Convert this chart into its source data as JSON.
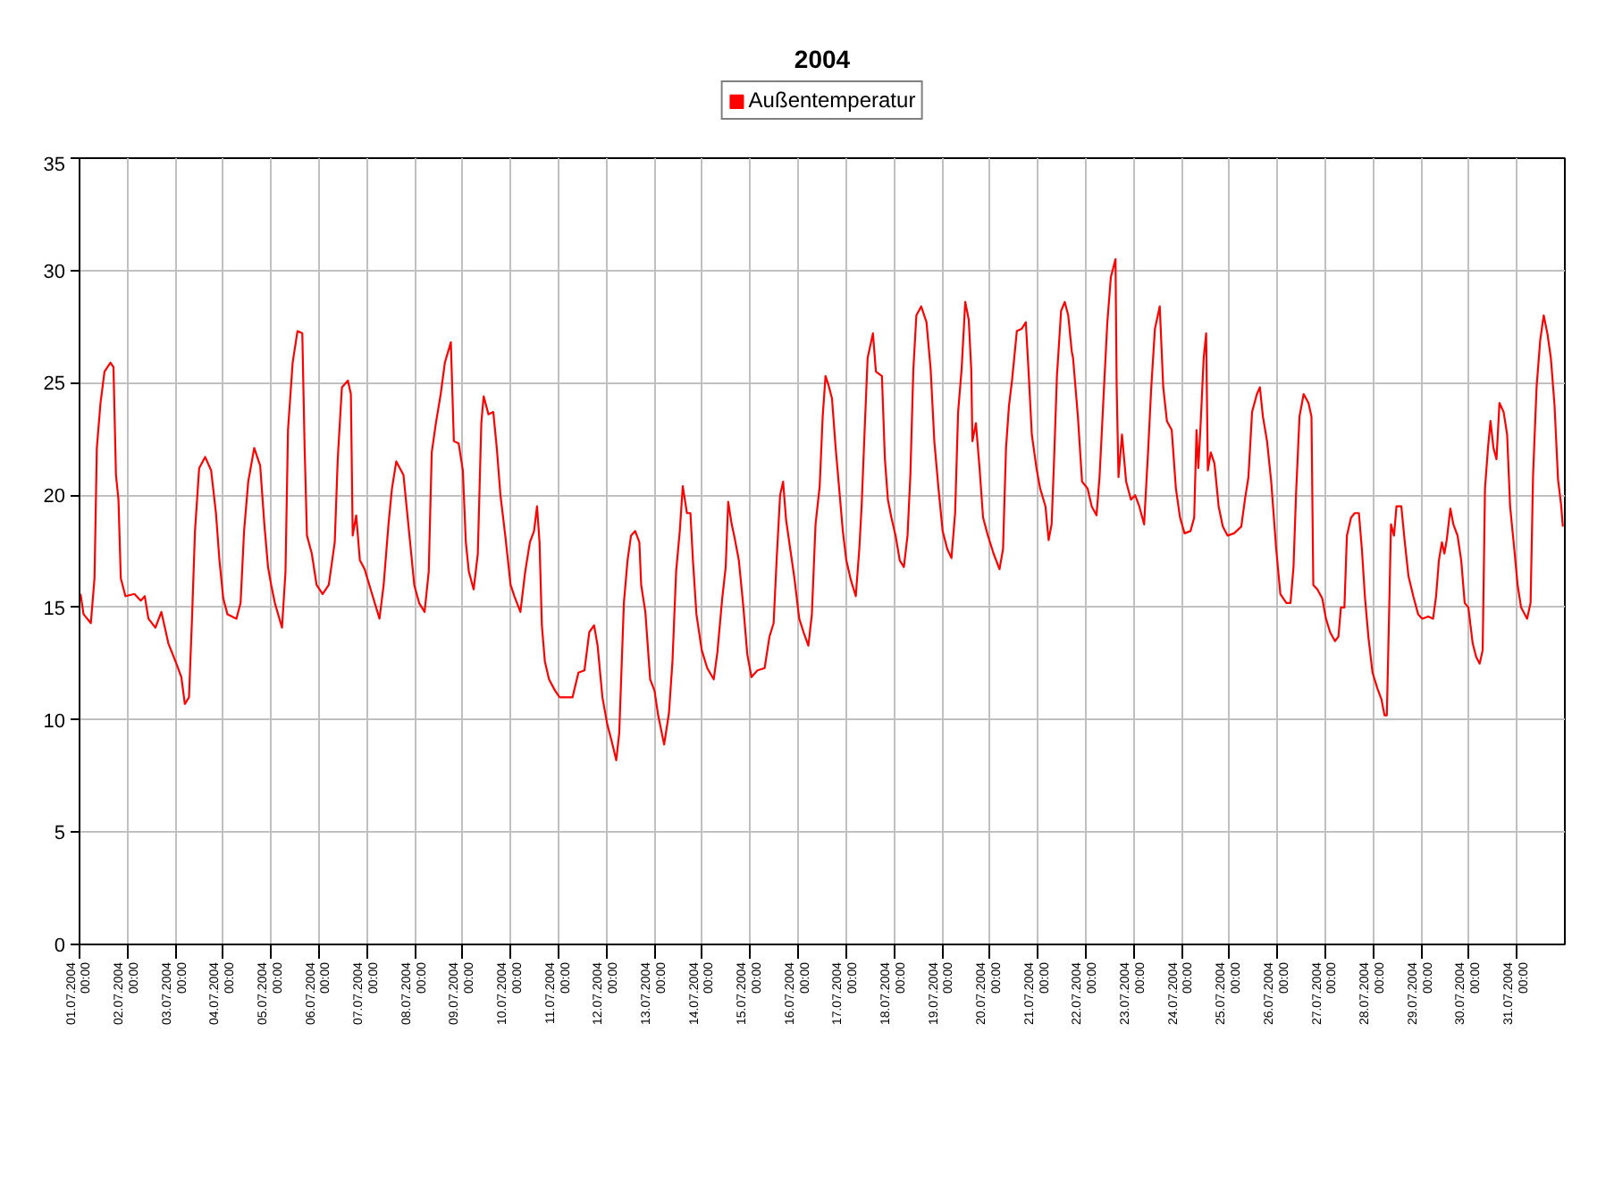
{
  "chart_data": {
    "type": "line",
    "title": "2004",
    "legend": "top",
    "grid": true,
    "xlim": [
      "2004-07-01T00:00",
      "2004-08-01T00:00"
    ],
    "xticks": [
      {
        "value": "2004-07-01T00:00",
        "label": "01.07.2004\n00:00"
      },
      {
        "value": "2004-07-02T00:00",
        "label": "02.07.2004\n00:00"
      },
      {
        "value": "2004-07-03T00:00",
        "label": "03.07.2004\n00:00"
      },
      {
        "value": "2004-07-04T00:00",
        "label": "04.07.2004\n00:00"
      },
      {
        "value": "2004-07-05T00:00",
        "label": "05.07.2004\n00:00"
      },
      {
        "value": "2004-07-06T00:00",
        "label": "06.07.2004\n00:00"
      },
      {
        "value": "2004-07-07T00:00",
        "label": "07.07.2004\n00:00"
      },
      {
        "value": "2004-07-08T00:00",
        "label": "08.07.2004\n00:00"
      },
      {
        "value": "2004-07-09T00:00",
        "label": "09.07.2004\n00:00"
      },
      {
        "value": "2004-07-10T00:00",
        "label": "10.07.2004\n00:00"
      },
      {
        "value": "2004-07-11T00:00",
        "label": "11.07.2004\n00:00"
      },
      {
        "value": "2004-07-12T00:00",
        "label": "12.07.2004\n00:00"
      },
      {
        "value": "2004-07-13T00:00",
        "label": "13.07.2004\n00:00"
      },
      {
        "value": "2004-07-14T00:00",
        "label": "14.07.2004\n00:00"
      },
      {
        "value": "2004-07-15T00:00",
        "label": "15.07.2004\n00:00"
      },
      {
        "value": "2004-07-16T00:00",
        "label": "16.07.2004\n00:00"
      },
      {
        "value": "2004-07-17T00:00",
        "label": "17.07.2004\n00:00"
      },
      {
        "value": "2004-07-18T00:00",
        "label": "18.07.2004\n00:00"
      },
      {
        "value": "2004-07-19T00:00",
        "label": "19.07.2004\n00:00"
      },
      {
        "value": "2004-07-20T00:00",
        "label": "20.07.2004\n00:00"
      },
      {
        "value": "2004-07-21T00:00",
        "label": "21.07.2004\n00:00"
      },
      {
        "value": "2004-07-22T00:00",
        "label": "22.07.2004\n00:00"
      },
      {
        "value": "2004-07-23T00:00",
        "label": "23.07.2004\n00:00"
      },
      {
        "value": "2004-07-24T00:00",
        "label": "24.07.2004\n00:00"
      },
      {
        "value": "2004-07-25T00:00",
        "label": "25.07.2004\n00:00"
      },
      {
        "value": "2004-07-26T00:00",
        "label": "26.07.2004\n00:00"
      },
      {
        "value": "2004-07-27T00:00",
        "label": "27.07.2004\n00:00"
      },
      {
        "value": "2004-07-28T00:00",
        "label": "28.07.2004\n00:00"
      },
      {
        "value": "2004-07-29T00:00",
        "label": "29.07.2004\n00:00"
      },
      {
        "value": "2004-07-30T00:00",
        "label": "30.07.2004\n00:00"
      },
      {
        "value": "2004-07-31T00:00",
        "label": "31.07.2004\n00:00"
      }
    ],
    "ylim": [
      0,
      35
    ],
    "yticks": [
      0,
      5,
      10,
      15,
      20,
      25,
      30,
      35
    ],
    "x": [
      "2004-07-01T00:30",
      "2004-07-01T02:00",
      "2004-07-01T05:40",
      "2004-07-01T07:30",
      "2004-07-01T08:40",
      "2004-07-01T10:30",
      "2004-07-01T12:30",
      "2004-07-01T15:30",
      "2004-07-01T17:00",
      "2004-07-01T18:15",
      "2004-07-01T19:30",
      "2004-07-01T20:40",
      "2004-07-01T23:00",
      "2004-07-02T03:30",
      "2004-07-02T06:40",
      "2004-07-02T08:40",
      "2004-07-02T10:30",
      "2004-07-02T14:00",
      "2004-07-02T17:00",
      "2004-07-02T20:30",
      "2004-07-03T00:30",
      "2004-07-03T03:00",
      "2004-07-03T04:45",
      "2004-07-03T06:50",
      "2004-07-03T08:20",
      "2004-07-03T09:50",
      "2004-07-03T11:55",
      "2004-07-03T14:55",
      "2004-07-03T17:55",
      "2004-07-03T20:20",
      "2004-07-03T22:05",
      "2004-07-04T00:00",
      "2004-07-04T02:05",
      "2004-07-04T06:35",
      "2004-07-04T08:40",
      "2004-07-04T10:25",
      "2004-07-04T12:30",
      "2004-07-04T15:30",
      "2004-07-04T18:30",
      "2004-07-04T20:35",
      "2004-07-04T22:25",
      "2004-07-05T00:00",
      "2004-07-05T01:50",
      "2004-07-05T05:25",
      "2004-07-05T07:10",
      "2004-07-05T08:25",
      "2004-07-05T10:45",
      "2004-07-05T13:10",
      "2004-07-05T15:35",
      "2004-07-05T16:45",
      "2004-07-05T17:55",
      "2004-07-05T20:20",
      "2004-07-05T22:45",
      "2004-07-06T01:45",
      "2004-07-06T04:50",
      "2004-07-06T07:50",
      "2004-07-06T09:20",
      "2004-07-06T11:25",
      "2004-07-06T14:25",
      "2004-07-06T15:55",
      "2004-07-06T16:50",
      "2004-07-06T18:35",
      "2004-07-06T20:25",
      "2004-07-06T22:50",
      "2004-07-07T01:50",
      "2004-07-07T06:15",
      "2004-07-07T08:20",
      "2004-07-07T10:45",
      "2004-07-07T12:30",
      "2004-07-07T14:40",
      "2004-07-07T18:15",
      "2004-07-07T21:15",
      "2004-07-07T23:40",
      "2004-07-08T02:05",
      "2004-07-08T04:50",
      "2004-07-08T06:55",
      "2004-07-08T08:25",
      "2004-07-08T10:30",
      "2004-07-08T12:55",
      "2004-07-08T15:00",
      "2004-07-08T18:00",
      "2004-07-08T19:30",
      "2004-07-08T21:55",
      "2004-07-09T00:00",
      "2004-07-09T01:30",
      "2004-07-09T03:00",
      "2004-07-09T05:25",
      "2004-07-09T07:30",
      "2004-07-09T09:15",
      "2004-07-09T10:25",
      "2004-07-09T12:50",
      "2004-07-09T15:15",
      "2004-07-09T17:00",
      "2004-07-09T18:50",
      "2004-07-09T21:15",
      "2004-07-09T23:55",
      "2004-07-10T01:50",
      "2004-07-10T04:50",
      "2004-07-10T07:15",
      "2004-07-10T09:35",
      "2004-07-10T11:40",
      "2004-07-10T13:10",
      "2004-07-10T14:25",
      "2004-07-10T15:35",
      "2004-07-10T17:05",
      "2004-07-10T19:10",
      "2004-07-10T22:10",
      "2004-07-11T00:30",
      "2004-07-11T02:25",
      "2004-07-11T06:55",
      "2004-07-11T09:55",
      "2004-07-11T12:55",
      "2004-07-11T15:20",
      "2004-07-11T17:45",
      "2004-07-11T19:30",
      "2004-07-11T21:55",
      "2004-07-12T00:20",
      "2004-07-12T02:25",
      "2004-07-12T04:50",
      "2004-07-12T06:20",
      "2004-07-12T07:30",
      "2004-07-12T08:40",
      "2004-07-12T10:30",
      "2004-07-12T12:15",
      "2004-07-12T14:20",
      "2004-07-12T16:25",
      "2004-07-12T17:20",
      "2004-07-12T19:25",
      "2004-07-12T21:50",
      "2004-07-13T00:00",
      "2004-07-13T01:50",
      "2004-07-13T04:50",
      "2004-07-13T07:15",
      "2004-07-13T09:00",
      "2004-07-13T10:50",
      "2004-07-13T12:40",
      "2004-07-13T14:10",
      "2004-07-13T16:15",
      "2004-07-13T18:00",
      "2004-07-13T19:15",
      "2004-07-13T21:00",
      "2004-07-13T23:40",
      "2004-07-14T02:25",
      "2004-07-14T05:40",
      "2004-07-14T07:30",
      "2004-07-14T09:55",
      "2004-07-14T11:40",
      "2004-07-14T12:55",
      "2004-07-14T14:40",
      "2004-07-14T15:55",
      "2004-07-14T18:15",
      "2004-07-14T20:20",
      "2004-07-14T22:30",
      "2004-07-15T00:35",
      "2004-07-15T03:35",
      "2004-07-15T07:10",
      "2004-07-15T09:35",
      "2004-07-15T11:40",
      "2004-07-15T13:10",
      "2004-07-15T14:55",
      "2004-07-15T16:25",
      "2004-07-15T17:55",
      "2004-07-15T20:00",
      "2004-07-15T22:05",
      "2004-07-16T00:30",
      "2004-07-16T02:40",
      "2004-07-16T05:05",
      "2004-07-16T06:50",
      "2004-07-16T08:40",
      "2004-07-16T10:45",
      "2004-07-16T12:15",
      "2004-07-16T13:40",
      "2004-07-16T15:10",
      "2004-07-16T16:55",
      "2004-07-16T18:45",
      "2004-07-16T20:30",
      "2004-07-16T22:20",
      "2004-07-17T00:05",
      "2004-07-17T02:25",
      "2004-07-17T04:50",
      "2004-07-17T06:35",
      "2004-07-17T07:45",
      "2004-07-17T09:00",
      "2004-07-17T10:45",
      "2004-07-17T13:25",
      "2004-07-17T14:55",
      "2004-07-17T17:55",
      "2004-07-17T19:25",
      "2004-07-17T20:55",
      "2004-07-17T22:40",
      "2004-07-18T00:45",
      "2004-07-18T02:50",
      "2004-07-18T04:55",
      "2004-07-18T06:45",
      "2004-07-18T08:10",
      "2004-07-18T09:40",
      "2004-07-18T11:10",
      "2004-07-18T13:35",
      "2004-07-18T16:15",
      "2004-07-18T18:20",
      "2004-07-18T20:10",
      "2004-07-18T22:15",
      "2004-07-19T00:20",
      "2004-07-19T02:40",
      "2004-07-19T04:45",
      "2004-07-19T06:35",
      "2004-07-19T08:05",
      "2004-07-19T09:50",
      "2004-07-19T11:40",
      "2004-07-19T13:25",
      "2004-07-19T14:40",
      "2004-07-19T15:15",
      "2004-07-19T17:00",
      "2004-07-19T18:50",
      "2004-07-19T20:35",
      "2004-07-19T23:00",
      "2004-07-20T01:50",
      "2004-07-20T04:50",
      "2004-07-20T06:35",
      "2004-07-20T08:05",
      "2004-07-20T09:35",
      "2004-07-20T11:05",
      "2004-07-20T13:30",
      "2004-07-20T15:55",
      "2004-07-20T18:00",
      "2004-07-20T19:30",
      "2004-07-20T21:00",
      "2004-07-20T23:20",
      "2004-07-21T01:10",
      "2004-07-21T03:50",
      "2004-07-21T05:25",
      "2004-07-21T06:55",
      "2004-07-21T08:05",
      "2004-07-21T09:35",
      "2004-07-21T11:40",
      "2004-07-21T13:30",
      "2004-07-21T15:15",
      "2004-07-21T17:00",
      "2004-07-21T17:40",
      "2004-07-21T20:05",
      "2004-07-21T22:10",
      "2004-07-22T00:55",
      "2004-07-22T03:00",
      "2004-07-22T05:25",
      "2004-07-22T06:55",
      "2004-07-22T07:50",
      "2004-07-22T09:00",
      "2004-07-22T10:50",
      "2004-07-22T12:35",
      "2004-07-22T14:55",
      "2004-07-22T15:30",
      "2004-07-22T16:25",
      "2004-07-22T18:10",
      "2004-07-22T20:15",
      "2004-07-22T22:40",
      "2004-07-23T00:45",
      "2004-07-23T02:50",
      "2004-07-23T05:15",
      "2004-07-23T07:20",
      "2004-07-23T08:50",
      "2004-07-23T10:40",
      "2004-07-23T13:05",
      "2004-07-23T14:50",
      "2004-07-23T16:40",
      "2004-07-23T19:05",
      "2004-07-23T21:10",
      "2004-07-23T23:15",
      "2004-07-24T01:30",
      "2004-07-24T04:30",
      "2004-07-24T06:20",
      "2004-07-24T07:30",
      "2004-07-24T08:25",
      "2004-07-24T09:35",
      "2004-07-24T11:05",
      "2004-07-24T12:20",
      "2004-07-24T13:10",
      "2004-07-24T14:40",
      "2004-07-24T16:30",
      "2004-07-24T18:35",
      "2004-07-24T20:40",
      "2004-07-24T23:05",
      "2004-07-25T02:20",
      "2004-07-25T05:55",
      "2004-07-25T07:45",
      "2004-07-25T09:30",
      "2004-07-25T11:20",
      "2004-07-25T13:45",
      "2004-07-25T15:15",
      "2004-07-25T16:45",
      "2004-07-25T18:50",
      "2004-07-25T20:55",
      "2004-07-25T23:25",
      "2004-07-26T01:30",
      "2004-07-26T04:30",
      "2004-07-26T06:35",
      "2004-07-26T08:05",
      "2004-07-26T09:20",
      "2004-07-26T11:05",
      "2004-07-26T13:10",
      "2004-07-26T15:35",
      "2004-07-26T17:05",
      "2004-07-26T18:00",
      "2004-07-26T20:05",
      "2004-07-26T22:30",
      "2004-07-27T00:20",
      "2004-07-27T02:25",
      "2004-07-27T04:50",
      "2004-07-27T06:35",
      "2004-07-27T07:50",
      "2004-07-27T09:35",
      "2004-07-27T10:50",
      "2004-07-27T12:55",
      "2004-07-27T14:45",
      "2004-07-27T16:50",
      "2004-07-27T18:20",
      "2004-07-27T19:50",
      "2004-07-27T21:35",
      "2004-07-27T23:40",
      "2004-07-28T02:05",
      "2004-07-28T04:10",
      "2004-07-28T05:40",
      "2004-07-28T06:50",
      "2004-07-28T08:05",
      "2004-07-28T08:55",
      "2004-07-28T10:25",
      "2004-07-28T11:40",
      "2004-07-28T14:05",
      "2004-07-28T15:50",
      "2004-07-28T17:40",
      "2004-07-28T20:05",
      "2004-07-28T22:30",
      "2004-07-29T00:35",
      "2004-07-29T03:35",
      "2004-07-29T06:00",
      "2004-07-29T07:30",
      "2004-07-29T08:55",
      "2004-07-29T10:25",
      "2004-07-29T11:40",
      "2004-07-29T12:50",
      "2004-07-29T14:40",
      "2004-07-29T16:10",
      "2004-07-29T18:15",
      "2004-07-29T20:05",
      "2004-07-29T21:50",
      "2004-07-29T23:40",
      "2004-07-30T01:50",
      "2004-07-30T03:35",
      "2004-07-30T05:20",
      "2004-07-30T06:50",
      "2004-07-30T08:00",
      "2004-07-30T09:30",
      "2004-07-30T10:45",
      "2004-07-30T12:15",
      "2004-07-30T13:45",
      "2004-07-30T15:15",
      "2004-07-30T17:20",
      "2004-07-30T19:05",
      "2004-07-30T20:35",
      "2004-07-30T22:40",
      "2004-07-31T00:20",
      "2004-07-31T02:05",
      "2004-07-31T05:05",
      "2004-07-31T06:50",
      "2004-07-31T08:05",
      "2004-07-31T09:50",
      "2004-07-31T11:40",
      "2004-07-31T13:25",
      "2004-07-31T15:15",
      "2004-07-31T17:00",
      "2004-07-31T18:50",
      "2004-07-31T20:35",
      "2004-07-31T22:05",
      "2004-07-31T23:00"
    ],
    "series": [
      {
        "name": "Außentemperatur",
        "color": "#ff0000",
        "values": [
          15.6,
          14.7,
          14.3,
          16.3,
          22.1,
          24.1,
          25.5,
          25.9,
          25.7,
          20.9,
          19.8,
          16.3,
          15.5,
          15.6,
          15.3,
          15.5,
          14.5,
          14.1,
          14.8,
          13.4,
          12.5,
          11.9,
          10.7,
          11.0,
          14.5,
          18.4,
          21.2,
          21.7,
          21.1,
          19.2,
          17.1,
          15.4,
          14.7,
          14.5,
          15.2,
          18.4,
          20.6,
          22.1,
          21.3,
          18.7,
          16.8,
          16.0,
          15.2,
          14.1,
          16.6,
          22.9,
          25.9,
          27.3,
          27.2,
          22.1,
          18.2,
          17.4,
          16.0,
          15.6,
          16.0,
          17.9,
          21.6,
          24.8,
          25.1,
          24.5,
          18.2,
          19.1,
          17.1,
          16.7,
          15.8,
          14.5,
          16.0,
          18.7,
          20.3,
          21.5,
          20.9,
          18.2,
          16.0,
          15.2,
          14.8,
          16.6,
          21.9,
          23.2,
          24.5,
          25.9,
          26.8,
          22.4,
          22.3,
          21.1,
          17.9,
          16.6,
          15.8,
          17.4,
          23.2,
          24.4,
          23.6,
          23.7,
          22.1,
          20.0,
          18.2,
          16.0,
          15.5,
          14.8,
          16.6,
          17.9,
          18.4,
          19.5,
          17.9,
          14.2,
          12.6,
          11.8,
          11.3,
          11.0,
          11.0,
          11.0,
          12.1,
          12.2,
          13.9,
          14.2,
          13.3,
          11.0,
          9.8,
          9.1,
          8.2,
          9.4,
          12.3,
          15.2,
          17.1,
          18.2,
          18.4,
          17.9,
          16.0,
          14.8,
          11.8,
          11.3,
          10.2,
          8.9,
          10.3,
          12.6,
          16.6,
          18.4,
          20.4,
          19.2,
          19.2,
          17.1,
          14.7,
          13.1,
          12.3,
          11.8,
          13.0,
          15.4,
          16.8,
          19.7,
          18.7,
          18.2,
          17.1,
          15.2,
          12.9,
          11.9,
          12.2,
          12.3,
          13.7,
          14.3,
          17.1,
          20.0,
          20.6,
          18.9,
          17.6,
          16.3,
          14.5,
          13.9,
          13.3,
          14.7,
          18.7,
          20.4,
          23.5,
          25.3,
          24.9,
          24.3,
          22.1,
          20.3,
          18.4,
          17.1,
          16.2,
          15.5,
          17.6,
          19.5,
          22.3,
          26.1,
          27.2,
          25.5,
          25.3,
          21.6,
          19.8,
          19.0,
          18.2,
          17.1,
          16.8,
          18.2,
          20.9,
          25.6,
          28.0,
          28.4,
          27.7,
          25.6,
          22.4,
          20.3,
          18.4,
          17.6,
          17.2,
          19.2,
          23.7,
          25.6,
          28.6,
          27.8,
          25.6,
          22.4,
          23.2,
          21.2,
          19.0,
          18.2,
          17.4,
          16.7,
          17.6,
          22.1,
          24.0,
          25.1,
          27.3,
          27.4,
          27.7,
          25.3,
          22.7,
          21.2,
          20.3,
          19.5,
          18.0,
          18.7,
          21.4,
          25.3,
          28.2,
          28.6,
          28.0,
          26.4,
          26.1,
          23.5,
          20.6,
          20.3,
          19.5,
          19.1,
          20.8,
          22.4,
          24.5,
          27.7,
          29.7,
          30.5,
          24.9,
          20.8,
          22.7,
          20.6,
          19.8,
          20.0,
          19.5,
          18.7,
          22.1,
          24.8,
          27.4,
          28.4,
          24.8,
          23.3,
          22.9,
          20.3,
          19.0,
          18.3,
          18.4,
          19.0,
          22.9,
          21.2,
          23.2,
          26.1,
          27.2,
          21.1,
          21.9,
          21.4,
          19.5,
          18.6,
          18.2,
          18.3,
          18.6,
          19.8,
          20.8,
          23.7,
          24.5,
          24.8,
          23.5,
          22.4,
          20.6,
          17.6,
          15.6,
          15.2,
          15.2,
          16.8,
          20.0,
          23.5,
          24.5,
          24.1,
          23.5,
          16.0,
          15.8,
          15.4,
          14.5,
          13.9,
          13.5,
          13.7,
          15.0,
          15.0,
          18.2,
          19.0,
          19.2,
          19.2,
          17.6,
          15.5,
          13.7,
          12.1,
          11.4,
          10.9,
          10.2,
          10.2,
          15.2,
          18.7,
          18.2,
          19.5,
          19.5,
          17.9,
          16.4,
          15.5,
          14.7,
          14.5,
          14.6,
          14.5,
          15.5,
          17.1,
          17.9,
          17.4,
          18.0,
          19.4,
          18.7,
          18.2,
          17.1,
          15.2,
          15.0,
          13.4,
          12.8,
          12.5,
          13.1,
          20.3,
          22.1,
          23.3,
          22.1,
          21.6,
          24.1,
          23.7,
          22.7,
          19.5,
          17.6,
          16.0,
          15.0,
          14.5,
          15.2,
          20.9,
          24.8,
          26.9,
          28.0,
          27.2,
          26.1,
          24.0,
          20.7,
          19.6,
          18.6
        ]
      }
    ]
  }
}
